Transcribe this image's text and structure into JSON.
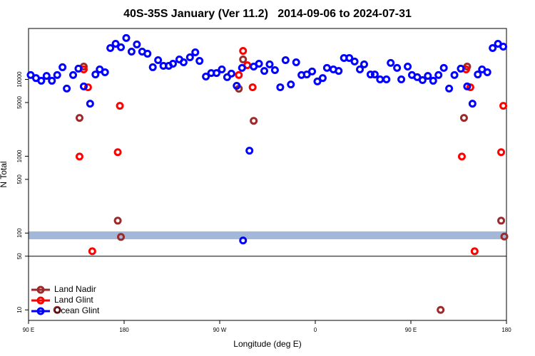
{
  "chart_data": {
    "type": "scatter",
    "title": "40S-35S January (Ver 11.2)   2014-09-06 to 2024-07-31",
    "xlabel": "Longitude (deg E)",
    "ylabel": "N Total",
    "xlim": [
      90,
      540
    ],
    "xticks": [
      {
        "value": 90,
        "label": "90 E"
      },
      180,
      {
        "value": 270,
        "label": "90 W"
      },
      {
        "value": 360,
        "label": "0"
      },
      {
        "value": 450,
        "label": "90 E"
      },
      {
        "value": 540,
        "label": "180"
      }
    ],
    "ylim": [
      7.3,
      46000
    ],
    "ylog": true,
    "yticks": [
      10,
      50,
      100,
      500,
      1000,
      5000,
      10000
    ],
    "hline": 50,
    "band": [
      83,
      105
    ],
    "band_color": "#a3b8d8",
    "legend": "lower left",
    "series": [
      {
        "name": "Land Nadir",
        "color": "#9b2a2a",
        "x": [
          117,
          138,
          142,
          174,
          177,
          288,
          292,
          302,
          478,
          500,
          503,
          535,
          538
        ],
        "values": [
          10,
          3150,
          14700,
          145,
          89,
          7570,
          18200,
          2890,
          10,
          3150,
          14700,
          145,
          90
        ]
      },
      {
        "name": "Land Glint",
        "color": "#ff0000",
        "x": [
          138,
          142,
          146,
          150,
          174,
          176,
          288,
          292,
          296,
          301,
          498,
          502,
          506,
          510,
          535,
          537
        ],
        "values": [
          990,
          13500,
          7900,
          58,
          1130,
          4530,
          11400,
          23500,
          15300,
          7900,
          990,
          13500,
          7900,
          58,
          1130,
          4530
        ]
      },
      {
        "name": "Ocean Glint",
        "color": "#0000ff",
        "x": [
          92,
          97,
          102,
          107,
          112,
          117,
          122,
          126,
          132,
          137,
          142,
          148,
          153,
          157,
          162,
          167,
          172,
          177,
          182,
          187,
          192,
          197,
          202,
          207,
          212,
          217,
          222,
          226,
          232,
          236,
          242,
          247,
          251,
          257,
          262,
          267,
          272,
          277,
          281,
          286,
          291,
          292,
          298,
          302,
          307,
          312,
          317,
          322,
          327,
          332,
          337,
          342,
          347,
          352,
          357,
          362,
          367,
          371,
          377,
          382,
          387,
          392,
          397,
          402,
          406,
          412,
          416,
          421,
          427,
          431,
          437,
          441,
          447,
          451,
          456,
          461,
          466,
          471,
          476,
          481,
          486,
          491,
          497,
          503,
          508,
          513,
          517,
          522,
          527,
          532,
          537
        ],
        "values": [
          11400,
          10400,
          9600,
          11100,
          9600,
          11400,
          14400,
          7600,
          11400,
          13800,
          8100,
          4830,
          11600,
          13500,
          12400,
          25600,
          29100,
          26200,
          34600,
          23000,
          28500,
          23000,
          21600,
          14400,
          17800,
          15000,
          15000,
          16000,
          18200,
          16700,
          19400,
          22500,
          17400,
          10900,
          12100,
          12100,
          13500,
          10700,
          11900,
          8250,
          14100,
          80,
          1180,
          14700,
          16000,
          12900,
          15700,
          13200,
          7900,
          17800,
          8600,
          16700,
          11400,
          11600,
          12700,
          9400,
          10400,
          14100,
          13500,
          12900,
          19000,
          19000,
          17100,
          13500,
          15700,
          11600,
          11600,
          10000,
          10000,
          16400,
          14100,
          10000,
          14700,
          11400,
          10700,
          9800,
          11100,
          9600,
          11400,
          14100,
          7600,
          11400,
          13800,
          8100,
          4830,
          11600,
          13500,
          12400,
          25600,
          29100,
          26700
        ]
      }
    ]
  }
}
